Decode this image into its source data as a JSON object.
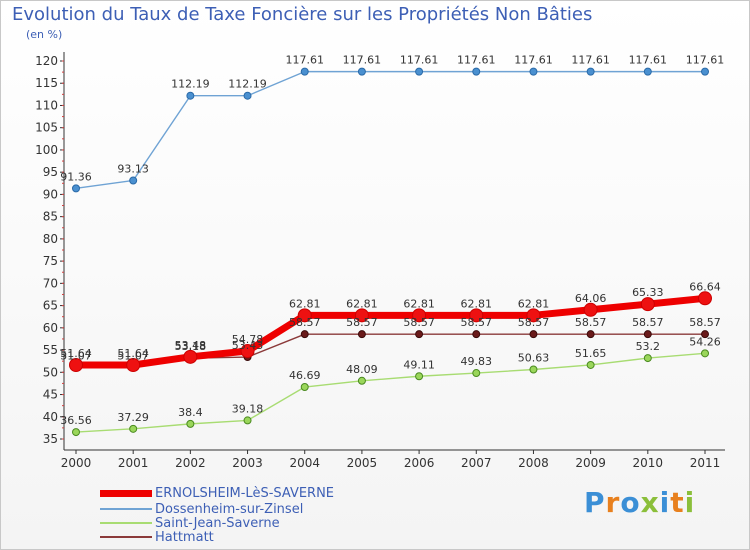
{
  "header": {
    "title": "Evolution du Taux de Taxe Foncière sur les Propriétés Non Bâties",
    "unit": "(en %)"
  },
  "chart_data": {
    "type": "line",
    "title": "Evolution du Taux de Taxe Foncière sur les Propriétés Non Bâties",
    "ylabel": "(en %)",
    "xlabel": "",
    "ylim": [
      35,
      120
    ],
    "grid": false,
    "y_ticks": [
      35,
      40,
      45,
      50,
      55,
      60,
      65,
      70,
      75,
      80,
      85,
      90,
      95,
      100,
      105,
      110,
      115,
      120
    ],
    "categories": [
      "2000",
      "2001",
      "2002",
      "2003",
      "2004",
      "2005",
      "2006",
      "2007",
      "2008",
      "2009",
      "2010",
      "2011"
    ],
    "series": [
      {
        "name": "ERNOLSHEIM-LèS-SAVERNE",
        "color": "#ee0000",
        "values": [
          51.64,
          51.64,
          53.48,
          54.78,
          62.81,
          62.81,
          62.81,
          62.81,
          62.81,
          64.06,
          65.33,
          66.64
        ],
        "labels": [
          "51.64",
          "51.64",
          "53.48",
          "54.78",
          "62.81",
          "62.81",
          "62.81",
          "62.81",
          "62.81",
          "64.06",
          "65.33",
          "66.64"
        ]
      },
      {
        "name": "Dossenheim-sur-Zinsel",
        "color": "#6fa3d4",
        "values": [
          91.36,
          93.13,
          112.19,
          112.19,
          117.61,
          117.61,
          117.61,
          117.61,
          117.61,
          117.61,
          117.61,
          117.61
        ],
        "labels": [
          "91.36",
          "93.13",
          "112.19",
          "112.19",
          "117.61",
          "117.61",
          "117.61",
          "117.61",
          "117.61",
          "117.61",
          "117.61",
          "117.61"
        ]
      },
      {
        "name": "Saint-Jean-Saverne",
        "color": "#a8dc72",
        "values": [
          36.56,
          37.29,
          38.4,
          39.18,
          46.69,
          48.09,
          49.11,
          49.83,
          50.63,
          51.65,
          53.2,
          54.26
        ],
        "labels": [
          "36.56",
          "37.29",
          "38.4",
          "39.18",
          "46.69",
          "48.09",
          "49.11",
          "49.83",
          "50.63",
          "51.65",
          "53.2",
          "54.26"
        ]
      },
      {
        "name": "Hattmatt",
        "color": "#8b3a3a",
        "values": [
          51.07,
          51.07,
          53.18,
          53.43,
          58.57,
          58.57,
          58.57,
          58.57,
          58.57,
          58.57,
          58.57,
          58.57
        ],
        "labels": [
          "51.07",
          "51.07",
          "53.18",
          "53.43",
          "58.57",
          "58.57",
          "58.57",
          "58.57",
          "58.57",
          "58.57",
          "58.57",
          "58.57"
        ]
      }
    ]
  },
  "logo": {
    "text": "Proxiti",
    "colors": [
      "#3b8fd6",
      "#e8801e",
      "#3b8fd6",
      "#8bbf3a",
      "#3b8fd6",
      "#e8801e",
      "#8bbf3a"
    ]
  }
}
